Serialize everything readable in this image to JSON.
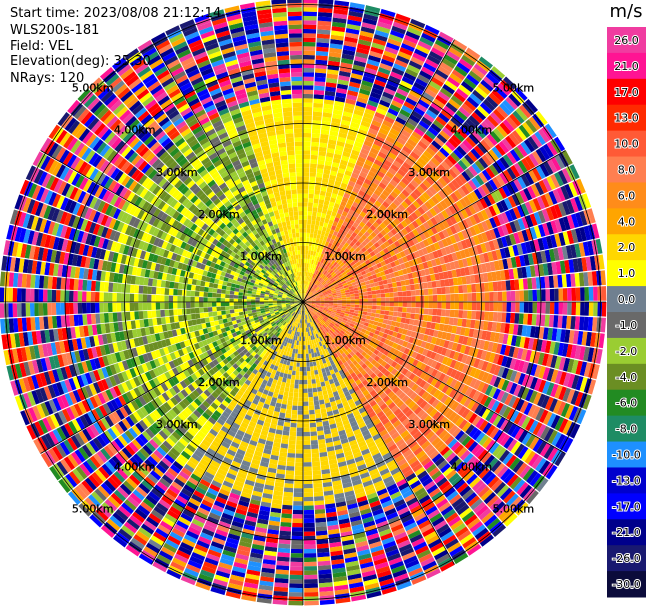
{
  "info": {
    "start_time": "Start time: 2023/08/08 21:12:14",
    "instrument": "WLS200s-181",
    "field": "Field: VEL",
    "elevation": "Elevation(deg): 35.30",
    "nrays": "NRays: 120"
  },
  "colorbar": {
    "unit": "m/s",
    "ticks": [
      "26.0",
      "21.0",
      "17.0",
      "13.0",
      "10.0",
      "8.0",
      "6.0",
      "4.0",
      "2.0",
      "1.0",
      "0.0",
      "-1.0",
      "-2.0",
      "-4.0",
      "-6.0",
      "-8.0",
      "-10.0",
      "-13.0",
      "-17.0",
      "-21.0",
      "-26.0",
      "-30.0"
    ],
    "colors": [
      "#f03ca0",
      "#ff1493",
      "#ff0000",
      "#ff2a00",
      "#ff5a36",
      "#ff7f50",
      "#ff8c1a",
      "#ffa500",
      "#ffd700",
      "#ffff00",
      "#708090",
      "#696969",
      "#9acd32",
      "#6b8e23",
      "#228b22",
      "#1e8c64",
      "#1e90ff",
      "#0000cd",
      "#0000ff",
      "#00008b",
      "#191970",
      "#0b0b3b"
    ]
  },
  "chart_data": {
    "type": "heatmap",
    "title": "",
    "field": "VEL",
    "units": "m/s",
    "nrays": 120,
    "elevation_deg": 35.3,
    "range_ring_labels": [
      "1.00km",
      "2.00km",
      "3.00km",
      "4.00km",
      "5.00km"
    ],
    "range_rings_km": [
      1,
      2,
      3,
      4,
      5
    ],
    "max_range_km": 5.1,
    "color_range": [
      -30,
      26
    ],
    "note_regions": [
      {
        "sector": "east",
        "velocity_ms": [
          4,
          10
        ]
      },
      {
        "sector": "west",
        "velocity_ms": [
          -6,
          -1
        ]
      },
      {
        "sector": "south",
        "velocity_ms": [
          0,
          2
        ]
      }
    ]
  }
}
